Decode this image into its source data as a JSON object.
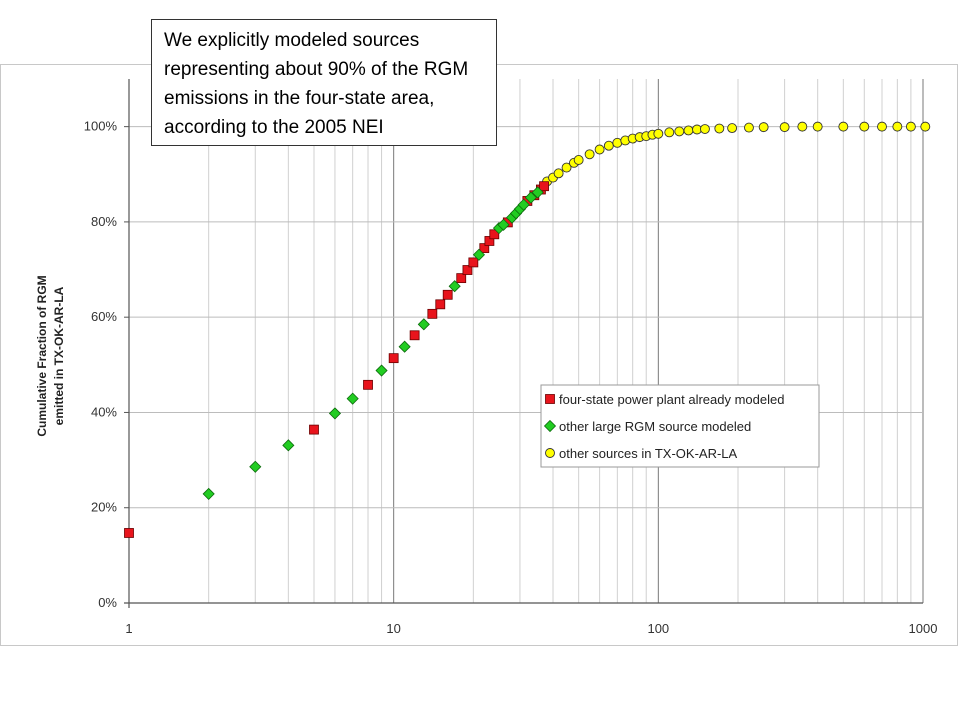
{
  "callout": {
    "text": "We explicitly modeled sources representing about 90% of the RGM emissions in the four-state area, according to the 2005 NEI"
  },
  "chart_data": {
    "type": "scatter",
    "title": "",
    "xlabel": "",
    "ylabel_lines": [
      "Cumulative Fraction of RGM",
      "emitted in TX-OK-AR-LA"
    ],
    "x_scale": "log",
    "xlim": [
      1,
      1000
    ],
    "ylim": [
      0,
      1.1
    ],
    "x_ticks": [
      1,
      10,
      100,
      1000
    ],
    "x_tick_labels": [
      "1",
      "10",
      "100",
      "1000"
    ],
    "y_ticks": [
      0,
      0.2,
      0.4,
      0.6,
      0.8,
      1.0
    ],
    "y_tick_labels": [
      "0%",
      "20%",
      "40%",
      "60%",
      "80%",
      "100%"
    ],
    "grid": true,
    "legend_position": "lower-right",
    "series": [
      {
        "name": "four-state power plant already modeled",
        "marker": "square",
        "color": "#e8141c",
        "points": [
          [
            1,
            0.147
          ],
          [
            5,
            0.364
          ],
          [
            8,
            0.458
          ],
          [
            10,
            0.514
          ],
          [
            12,
            0.562
          ],
          [
            14,
            0.607
          ],
          [
            15,
            0.627
          ],
          [
            16,
            0.647
          ],
          [
            18,
            0.682
          ],
          [
            19,
            0.699
          ],
          [
            20,
            0.715
          ],
          [
            22,
            0.745
          ],
          [
            23,
            0.76
          ],
          [
            24,
            0.774
          ],
          [
            27,
            0.799
          ],
          [
            32,
            0.844
          ],
          [
            34,
            0.856
          ],
          [
            36,
            0.868
          ],
          [
            37,
            0.875
          ]
        ]
      },
      {
        "name": "other large RGM source modeled",
        "marker": "diamond",
        "color": "#22cc22",
        "points": [
          [
            2,
            0.229
          ],
          [
            3,
            0.286
          ],
          [
            4,
            0.331
          ],
          [
            6,
            0.398
          ],
          [
            7,
            0.429
          ],
          [
            9,
            0.488
          ],
          [
            11,
            0.538
          ],
          [
            13,
            0.585
          ],
          [
            17,
            0.665
          ],
          [
            21,
            0.731
          ],
          [
            25,
            0.787
          ],
          [
            26,
            0.794
          ],
          [
            28,
            0.809
          ],
          [
            29,
            0.818
          ],
          [
            30,
            0.827
          ],
          [
            31,
            0.836
          ],
          [
            33,
            0.851
          ],
          [
            35,
            0.862
          ]
        ]
      },
      {
        "name": "other sources in TX-OK-AR-LA",
        "marker": "circle",
        "color": "#ffff00",
        "points": [
          [
            38,
            0.885
          ],
          [
            40,
            0.893
          ],
          [
            42,
            0.902
          ],
          [
            45,
            0.914
          ],
          [
            48,
            0.924
          ],
          [
            50,
            0.93
          ],
          [
            55,
            0.942
          ],
          [
            60,
            0.952
          ],
          [
            65,
            0.96
          ],
          [
            70,
            0.966
          ],
          [
            75,
            0.971
          ],
          [
            80,
            0.975
          ],
          [
            85,
            0.978
          ],
          [
            90,
            0.98
          ],
          [
            95,
            0.983
          ],
          [
            100,
            0.985
          ],
          [
            110,
            0.988
          ],
          [
            120,
            0.99
          ],
          [
            130,
            0.992
          ],
          [
            140,
            0.994
          ],
          [
            150,
            0.995
          ],
          [
            170,
            0.996
          ],
          [
            190,
            0.997
          ],
          [
            220,
            0.998
          ],
          [
            250,
            0.999
          ],
          [
            300,
            0.999
          ],
          [
            350,
            1.0
          ],
          [
            400,
            1.0
          ],
          [
            500,
            1.0
          ],
          [
            600,
            1.0
          ],
          [
            700,
            1.0
          ],
          [
            800,
            1.0
          ],
          [
            900,
            1.0
          ],
          [
            1020,
            1.0
          ]
        ]
      }
    ]
  }
}
